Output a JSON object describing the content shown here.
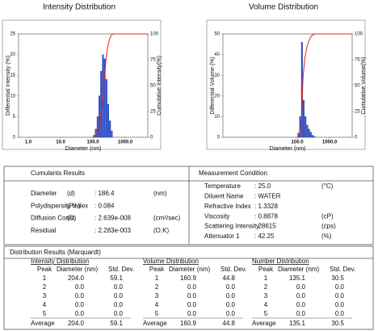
{
  "chart_data": [
    {
      "type": "histogram",
      "title": "Intensity Distribution",
      "x_label": "Diameter (nm)",
      "y_label": "Differential Intensity (%)",
      "y2_label": "Cumulative Intensity(%)",
      "xlog": true,
      "xlim": [
        0.5,
        5000
      ],
      "xticks": [
        {
          "value": 1,
          "label": "1.0"
        },
        {
          "value": 10,
          "label": "10.0"
        },
        {
          "value": 100,
          "label": "100.0"
        },
        {
          "value": 1000,
          "label": "1000.0"
        }
      ],
      "ylim": [
        0,
        25
      ],
      "yticks": [
        0,
        5,
        10,
        15,
        20,
        25
      ],
      "y2lim": [
        0,
        100
      ],
      "y2ticks": [
        0,
        25,
        50,
        75,
        100
      ],
      "color": "#2e55d6",
      "bins": [
        103,
        117,
        133,
        151,
        171,
        194,
        220,
        250,
        284,
        322,
        366,
        415
      ],
      "values": [
        0.5,
        2,
        5,
        10,
        16,
        20,
        19,
        14,
        8,
        4,
        1.5
      ],
      "cumulative": {
        "axis": "y2",
        "color": "#e02020",
        "x": [
          103,
          117,
          133,
          151,
          171,
          194,
          220,
          250,
          284,
          322,
          366,
          415,
          5000
        ],
        "values": [
          0,
          0.5,
          2.5,
          7.5,
          17.5,
          33.5,
          53.5,
          72.5,
          86.5,
          94.5,
          98.5,
          100,
          100
        ]
      }
    },
    {
      "type": "histogram",
      "title": "Volume Distribution",
      "x_label": "Diameter (nm)",
      "y_label": "Differential Volume (%)",
      "y2_label": "Cumulative Volume(%)",
      "xlog": true,
      "xlim": [
        0.5,
        5000
      ],
      "xticks": [
        {
          "value": 100,
          "label": "100.0"
        },
        {
          "value": 1000,
          "label": "1000.0"
        }
      ],
      "ylim": [
        0,
        50
      ],
      "yticks": [
        0,
        10,
        20,
        30,
        40,
        50
      ],
      "y2lim": [
        0,
        100
      ],
      "y2ticks": [
        0,
        25,
        50,
        75,
        100
      ],
      "color": "#2e55d6",
      "bins": [
        103,
        117,
        133,
        151,
        171,
        194,
        220,
        250,
        284,
        322,
        366
      ],
      "values": [
        2,
        10,
        46,
        18,
        10,
        6,
        4,
        2.5,
        1,
        0.5
      ],
      "cumulative": {
        "axis": "y2",
        "color": "#e02020",
        "x": [
          103,
          117,
          133,
          151,
          171,
          194,
          220,
          250,
          284,
          322,
          366,
          5000
        ],
        "values": [
          0,
          2,
          12,
          58,
          76,
          86,
          92,
          96,
          98.5,
          99.5,
          100,
          100
        ]
      }
    }
  ],
  "cumulants": {
    "title": "Cumulants Results",
    "rows": [
      {
        "label": "Diameter",
        "symbol": "(d)",
        "value": ": 186.4",
        "unit": "(nm)"
      },
      {
        "label": "Polydispersity Index",
        "symbol": "(P.I.)",
        "value": ": 0.084"
      },
      {
        "label": "Diffusion Const.",
        "symbol": "(D)",
        "value": ": 2.639e-008",
        "unit": "(cm²/sec)"
      },
      {
        "label": "Residual",
        "value": ": 2.283e-003",
        "unit": "(O.K)"
      }
    ]
  },
  "measurement": {
    "title": "Measurement Condition",
    "rows": [
      {
        "label": "Temperature",
        "value": ": 25.0",
        "unit": "(°C)"
      },
      {
        "label": "Diluent Name",
        "value": ": WATER"
      },
      {
        "label": "Refractive Index",
        "value": ": 1.3328"
      },
      {
        "label": "Viscosity",
        "value": ": 0.8878",
        "unit": "(cP)"
      },
      {
        "label": "Scattering Intensity",
        "value": ": 28615",
        "unit": "(cps)"
      },
      {
        "label": "Attenuator 1",
        "value": ": 42.25",
        "unit": "(%)"
      }
    ]
  },
  "distribution": {
    "title": "Distribution Results (Marquardt)",
    "groups": [
      {
        "title": "Intensity Distribution",
        "columns": [
          "Peak",
          "Diameter (nm)",
          "Std. Dev."
        ],
        "rows": [
          [
            "1",
            "204.0",
            "59.1"
          ],
          [
            "2",
            "0.0",
            "0.0"
          ],
          [
            "3",
            "0.0",
            "0.0"
          ],
          [
            "4",
            "0.0",
            "0.0"
          ],
          [
            "5",
            "0.0",
            "0.0"
          ]
        ],
        "average": [
          "Average",
          "204.0",
          "59.1"
        ]
      },
      {
        "title": "Volume Distribution",
        "columns": [
          "Peak",
          "Diameter (nm)",
          "Std. Dev."
        ],
        "rows": [
          [
            "1",
            "160.9",
            "44.8"
          ],
          [
            "2",
            "0.0",
            "0.0"
          ],
          [
            "3",
            "0.0",
            "0.0"
          ],
          [
            "4",
            "0.0",
            "0.0"
          ],
          [
            "5",
            "0.0",
            "0.0"
          ]
        ],
        "average": [
          "Average",
          "160.9",
          "44.8"
        ]
      },
      {
        "title": "Number Distribution",
        "columns": [
          "Peak",
          "Diameter (nm)",
          "Std. Dev."
        ],
        "rows": [
          [
            "1",
            "135.1",
            "30.5"
          ],
          [
            "2",
            "0.0",
            "0.0"
          ],
          [
            "3",
            "0.0",
            "0.0"
          ],
          [
            "4",
            "0.0",
            "0.0"
          ],
          [
            "5",
            "0.0",
            "0.0"
          ]
        ],
        "average": [
          "Average",
          "135.1",
          "30.5"
        ]
      }
    ]
  }
}
